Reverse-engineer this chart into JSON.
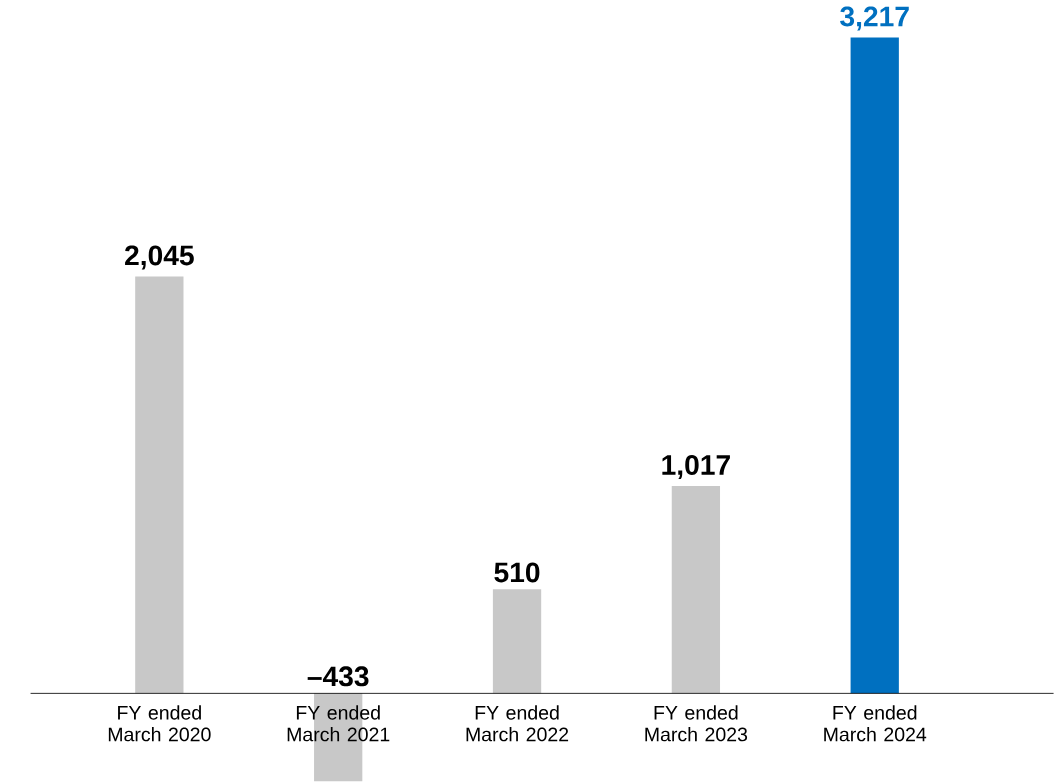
{
  "chart_data": {
    "type": "bar",
    "categories": [
      "FY ended March 2020",
      "FY ended March 2021",
      "FY ended March 2022",
      "FY ended March 2023",
      "FY ended March 2024"
    ],
    "values": [
      2045,
      -433,
      510,
      1017,
      3217
    ],
    "colors": [
      "#c8c8c8",
      "#c8c8c8",
      "#c8c8c8",
      "#c8c8c8",
      "#0070c0"
    ],
    "value_labels": [
      "2,045",
      "–433",
      "510",
      "1,017",
      "3,217"
    ]
  }
}
